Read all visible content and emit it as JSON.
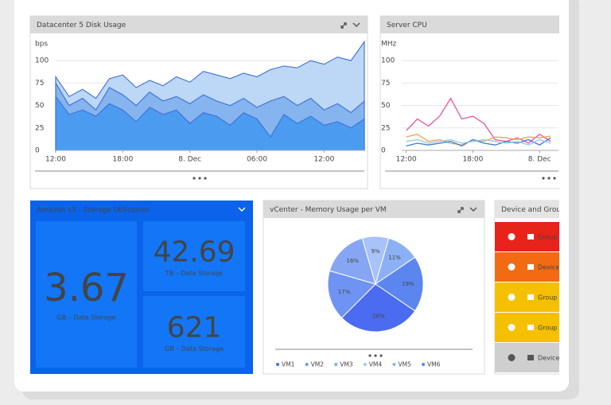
{
  "widgets": {
    "disk": {
      "title": "Datacenter 5 Disk Usage",
      "chart": {
        "type": "area",
        "y_label": "bps",
        "x": [
          0,
          1.2,
          2.4,
          3.6,
          4.8,
          6,
          7.2,
          8.4,
          9.6,
          10.8,
          12,
          13.2,
          14.4,
          15.6,
          16.8,
          18,
          19.2,
          20.4,
          21.6,
          22.8,
          24,
          25.2,
          26.4,
          27.6
        ],
        "xlim": [
          0,
          27.6
        ],
        "xticks": [
          {
            "value": 0,
            "label": "12:00"
          },
          {
            "value": 6,
            "label": "18:00"
          },
          {
            "value": 12,
            "label": "8. Dec"
          },
          {
            "value": 18,
            "label": "06:00"
          },
          {
            "value": 24,
            "label": "12:00"
          }
        ],
        "ylim": [
          0,
          125
        ],
        "yticks": [
          0,
          25,
          50,
          75,
          100
        ],
        "grid": true,
        "series": [
          {
            "color": "#bdd7f6",
            "values": [
              82,
              60,
              68,
              58,
              80,
              84,
              70,
              78,
              72,
              82,
              76,
              88,
              84,
              80,
              86,
              82,
              90,
              94,
              92,
              100,
              96,
              104,
              100,
              121
            ]
          },
          {
            "color": "#86b4ee",
            "values": [
              75,
              50,
              58,
              45,
              70,
              62,
              50,
              65,
              55,
              60,
              52,
              62,
              55,
              50,
              58,
              48,
              55,
              60,
              50,
              58,
              45,
              52,
              42,
              55
            ]
          },
          {
            "color": "#4b9cf0",
            "values": [
              60,
              40,
              45,
              38,
              52,
              45,
              32,
              48,
              40,
              45,
              30,
              42,
              38,
              28,
              42,
              35,
              15,
              40,
              30,
              38,
              28,
              32,
              25,
              35
            ]
          }
        ]
      }
    },
    "cpu": {
      "title": "Server CPU",
      "chart": {
        "type": "line",
        "y_label": "MHz",
        "x": [
          0,
          1,
          2,
          3,
          4,
          5,
          6,
          7,
          8,
          9,
          10,
          11,
          12,
          13
        ],
        "xlim": [
          -0.4,
          13.7
        ],
        "xticks": [
          {
            "value": 0,
            "label": "12:00"
          },
          {
            "value": 6,
            "label": "18:00"
          },
          {
            "value": 12,
            "label": "8. Dec"
          }
        ],
        "ylim": [
          0,
          125
        ],
        "yticks": [
          0,
          25,
          50,
          75,
          100
        ],
        "grid": true,
        "series": [
          {
            "color": "#e8559a",
            "values": [
              22,
              35,
              27,
              38,
              58,
              35,
              38,
              30,
              12,
              10,
              14,
              8,
              18,
              10
            ]
          },
          {
            "color": "#f5a04a",
            "values": [
              15,
              18,
              10,
              12,
              8,
              6,
              12,
              10,
              15,
              14,
              12,
              15,
              14,
              16
            ]
          },
          {
            "color": "#3a7bd5",
            "values": [
              5,
              8,
              6,
              8,
              10,
              5,
              12,
              8,
              6,
              10,
              8,
              12,
              6,
              14
            ]
          },
          {
            "color": "#8ecae6",
            "values": [
              10,
              12,
              8,
              10,
              12,
              8,
              10,
              12,
              10,
              8,
              10,
              6,
              12,
              8
            ]
          }
        ]
      }
    },
    "storage": {
      "title": "Amazon s3 - Storage Utilization",
      "tiles": [
        {
          "value": 3.67,
          "label": "GB – Data Storage"
        },
        {
          "value": 42.69,
          "label": "TB – Data Storage"
        },
        {
          "value": 621,
          "label": "GB – Data Storage"
        }
      ]
    },
    "memory": {
      "title": "vCenter - Memory Usage per VM",
      "chart": {
        "type": "pie",
        "start_angle": 34.2,
        "categories": [
          "VM1",
          "VM2",
          "VM3",
          "VM4",
          "VM5",
          "VM6"
        ],
        "values": [
          28,
          17,
          16,
          9,
          11,
          19
        ],
        "value_labels": [
          "28%",
          "17%",
          "16%",
          "9%",
          "11%",
          "19%"
        ],
        "colors": [
          "#4b6cf0",
          "#6e93f2",
          "#86a6f4",
          "#a9c2f7",
          "#8bb0f6",
          "#5b85ef"
        ]
      }
    },
    "devices": {
      "title": "Device and Group",
      "rows": [
        {
          "label": "Group N",
          "color": "#e8231a"
        },
        {
          "label": "Device",
          "color": "#f26a12"
        },
        {
          "label": "Group N",
          "color": "#f5c000"
        },
        {
          "label": "Group N",
          "color": "#f5c000"
        },
        {
          "label": "Device",
          "color": "#cfcfcf"
        }
      ]
    }
  }
}
